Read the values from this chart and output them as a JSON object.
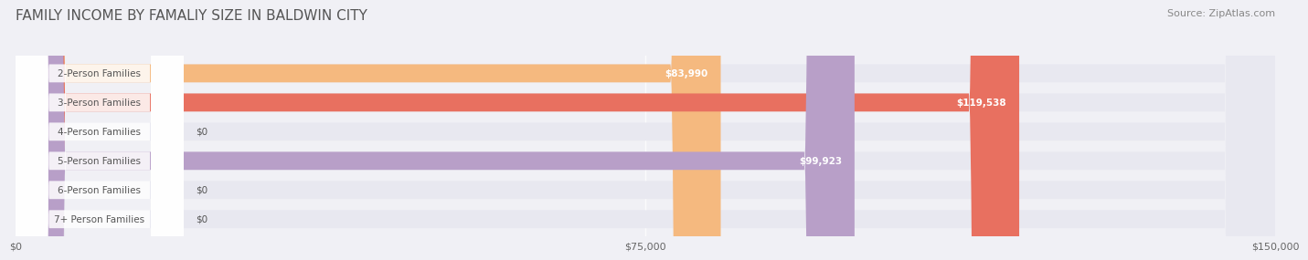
{
  "title": "FAMILY INCOME BY FAMALIY SIZE IN BALDWIN CITY",
  "source": "Source: ZipAtlas.com",
  "categories": [
    "2-Person Families",
    "3-Person Families",
    "4-Person Families",
    "5-Person Families",
    "6-Person Families",
    "7+ Person Families"
  ],
  "values": [
    83990,
    119538,
    0,
    99923,
    0,
    0
  ],
  "bar_colors": [
    "#f5b97f",
    "#e87060",
    "#a8c4e0",
    "#b89fc8",
    "#7ecece",
    "#b0c0e0"
  ],
  "xlim": [
    0,
    150000
  ],
  "xtick_values": [
    0,
    75000,
    150000
  ],
  "xtick_labels": [
    "$0",
    "$75,000",
    "$150,000"
  ],
  "value_labels": [
    "$83,990",
    "$119,538",
    "$0",
    "$99,923",
    "$0",
    "$0"
  ],
  "background_color": "#f0f0f5",
  "bar_background_color": "#e8e8f0",
  "title_fontsize": 11,
  "source_fontsize": 8,
  "label_fontsize": 7.5,
  "value_fontsize": 7.5
}
